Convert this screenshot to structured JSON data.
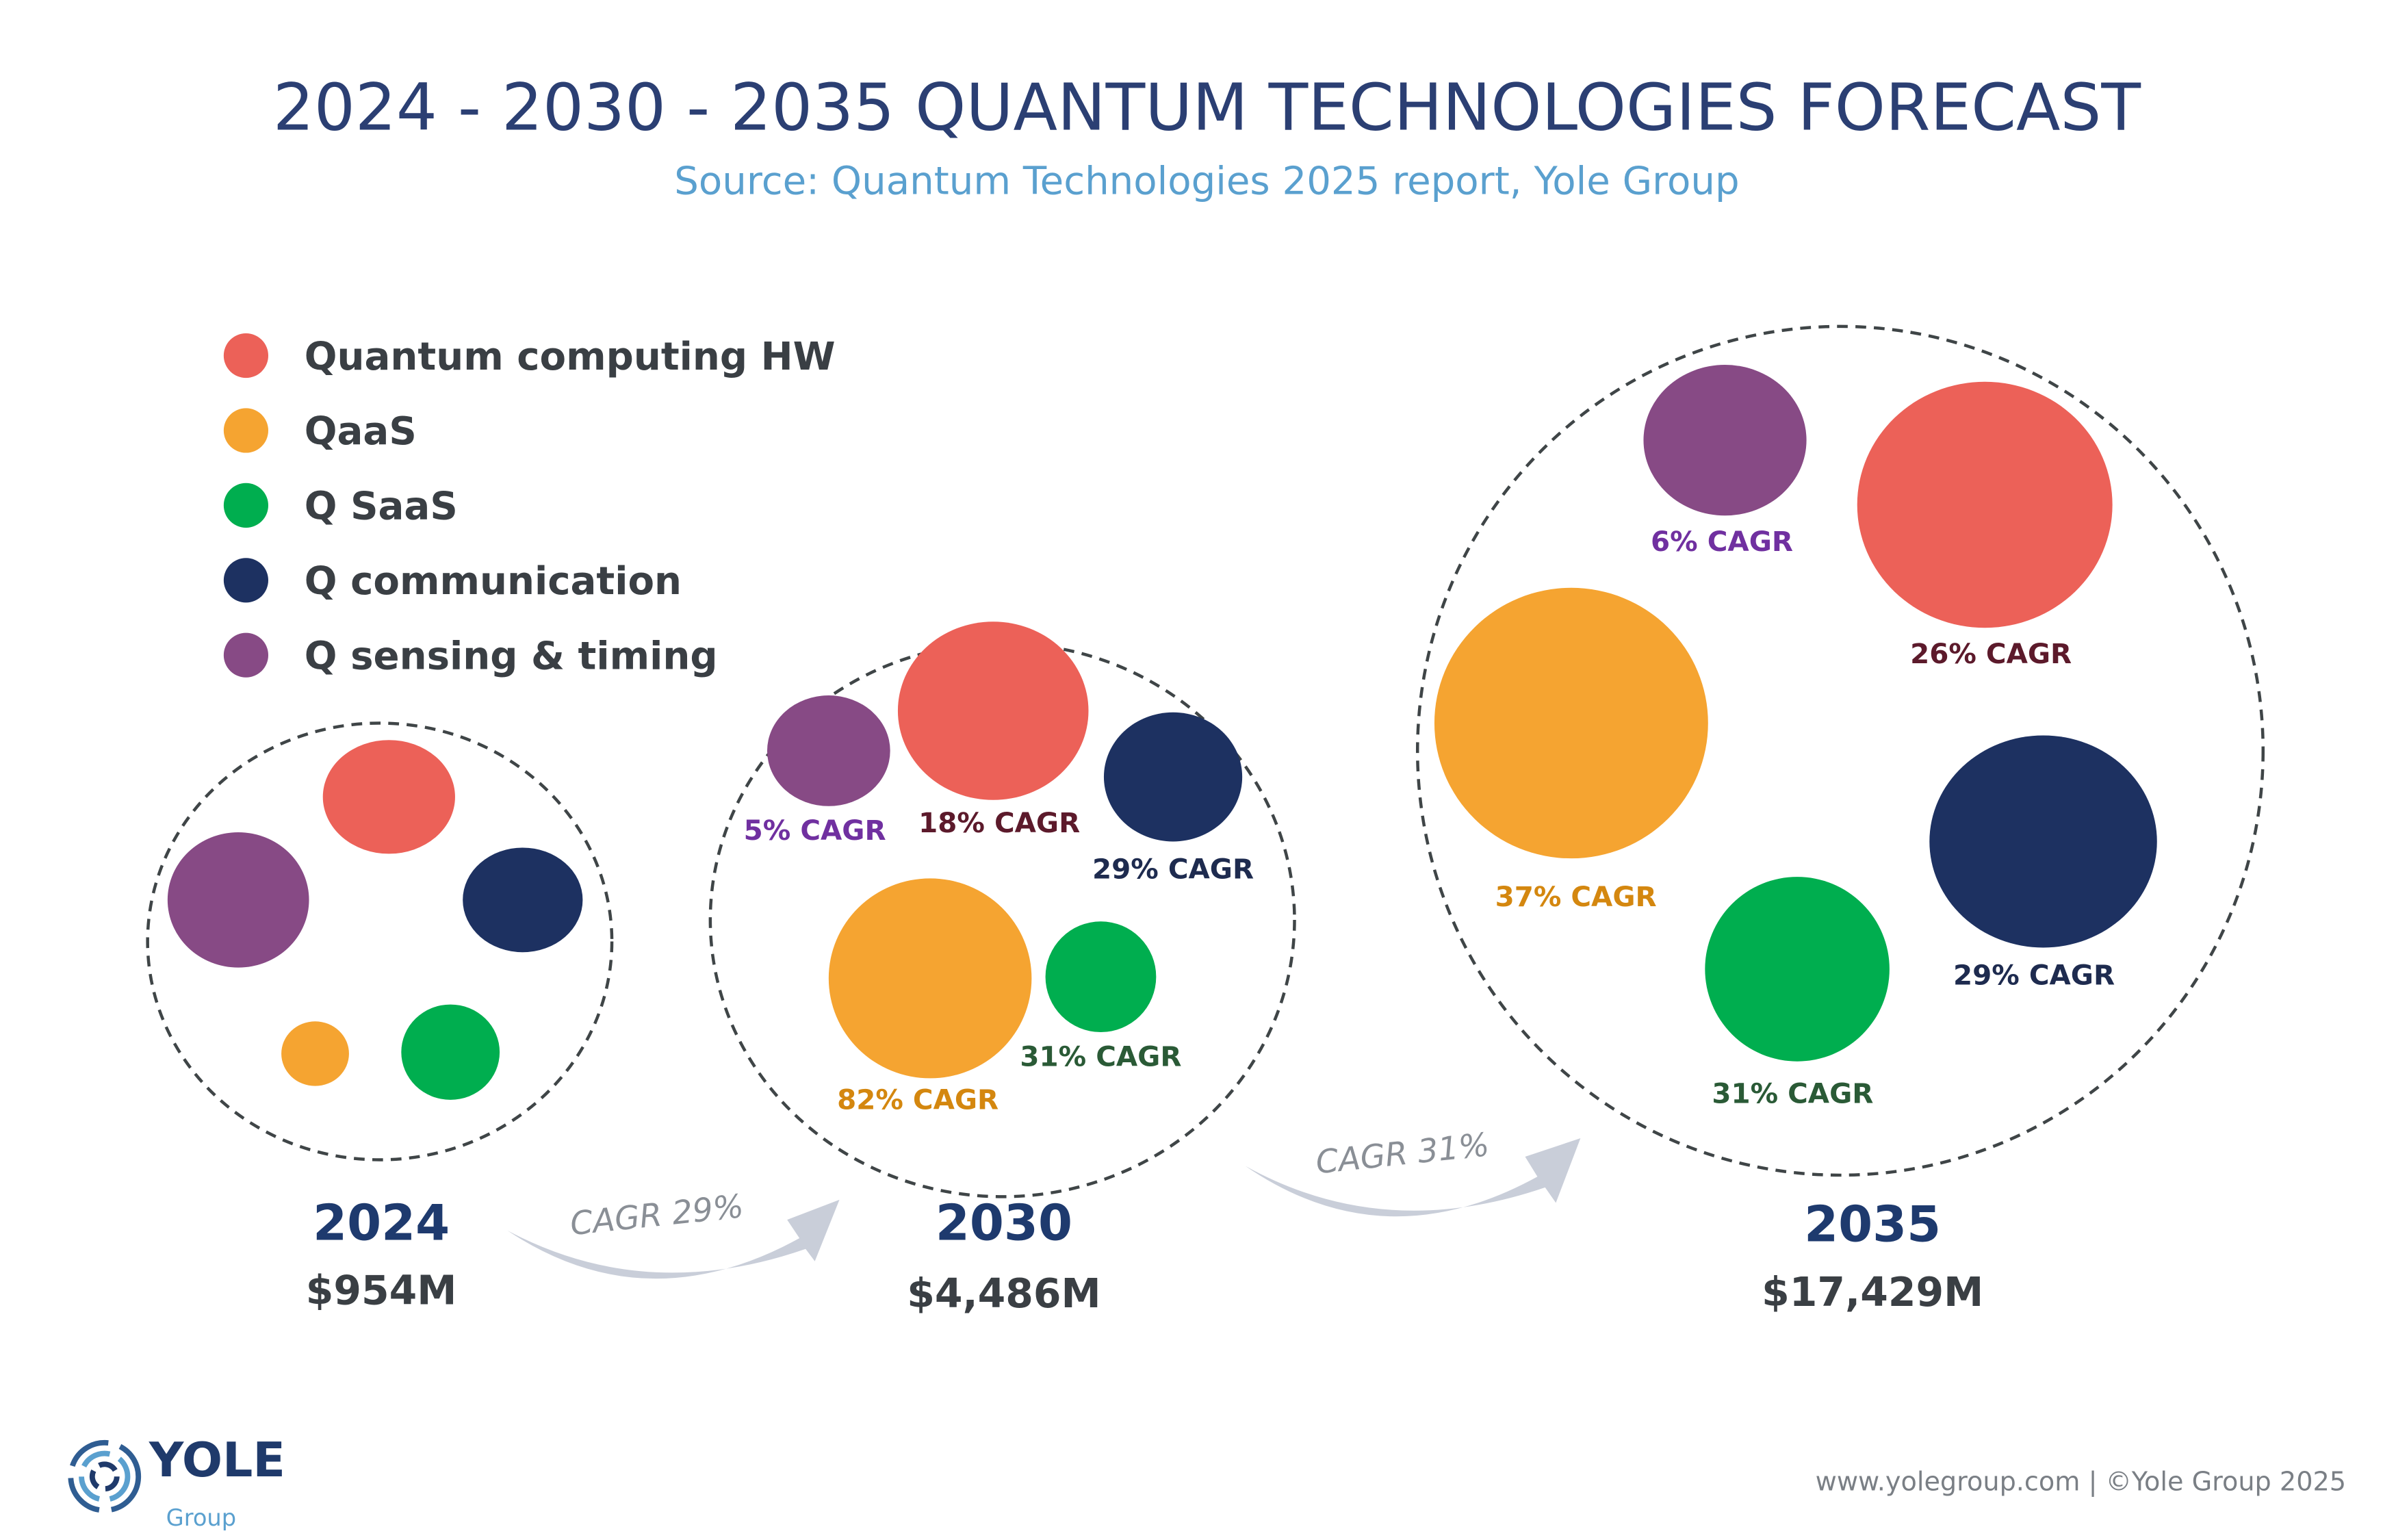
{
  "title": "2024 - 2030 - 2035 QUANTUM TECHNOLOGIES FORECAST",
  "subtitle": "Source: Quantum Technologies 2025 report, Yole Group",
  "footer": "www.yolegroup.com | ©Yole Group 2025",
  "logo": {
    "main": "YOLE",
    "sub": "Group"
  },
  "colors": {
    "Quantum computing HW": "#ec6158",
    "QaaS": "#f5a431",
    "Q SaaS": "#00ae4f",
    "Q communication": "#1d3161",
    "Q sensing & timing": "#874a85"
  },
  "chart_data": {
    "type": "bubble",
    "title": "2024 - 2030 - 2035 QUANTUM TECHNOLOGIES FORECAST",
    "legend": [
      "Quantum computing HW",
      "QaaS",
      "Q SaaS",
      "Q communication",
      "Q sensing & timing"
    ],
    "legend_placement": "top-left",
    "years": [
      {
        "year": "2024",
        "total": "$954M",
        "segments": [
          {
            "name": "Quantum computing HW",
            "cagr": ""
          },
          {
            "name": "Q sensing & timing",
            "cagr": ""
          },
          {
            "name": "Q communication",
            "cagr": ""
          },
          {
            "name": "QaaS",
            "cagr": ""
          },
          {
            "name": "Q SaaS",
            "cagr": ""
          }
        ]
      },
      {
        "year": "2030",
        "total": "$4,486M",
        "segments": [
          {
            "name": "Q sensing & timing",
            "cagr": "5% CAGR"
          },
          {
            "name": "Quantum computing HW",
            "cagr": "18% CAGR"
          },
          {
            "name": "Q communication",
            "cagr": "29% CAGR"
          },
          {
            "name": "QaaS",
            "cagr": "82% CAGR"
          },
          {
            "name": "Q SaaS",
            "cagr": "31% CAGR"
          }
        ]
      },
      {
        "year": "2035",
        "total": "$17,429M",
        "segments": [
          {
            "name": "Q sensing & timing",
            "cagr": "6% CAGR"
          },
          {
            "name": "Quantum computing HW",
            "cagr": "26% CAGR"
          },
          {
            "name": "QaaS",
            "cagr": "37% CAGR"
          },
          {
            "name": "Q communication",
            "cagr": "29% CAGR"
          },
          {
            "name": "Q SaaS",
            "cagr": "31% CAGR"
          }
        ]
      }
    ],
    "transitions": [
      {
        "from": "2024",
        "to": "2030",
        "label": "CAGR 29%"
      },
      {
        "from": "2030",
        "to": "2035",
        "label": "CAGR 31%"
      }
    ]
  }
}
